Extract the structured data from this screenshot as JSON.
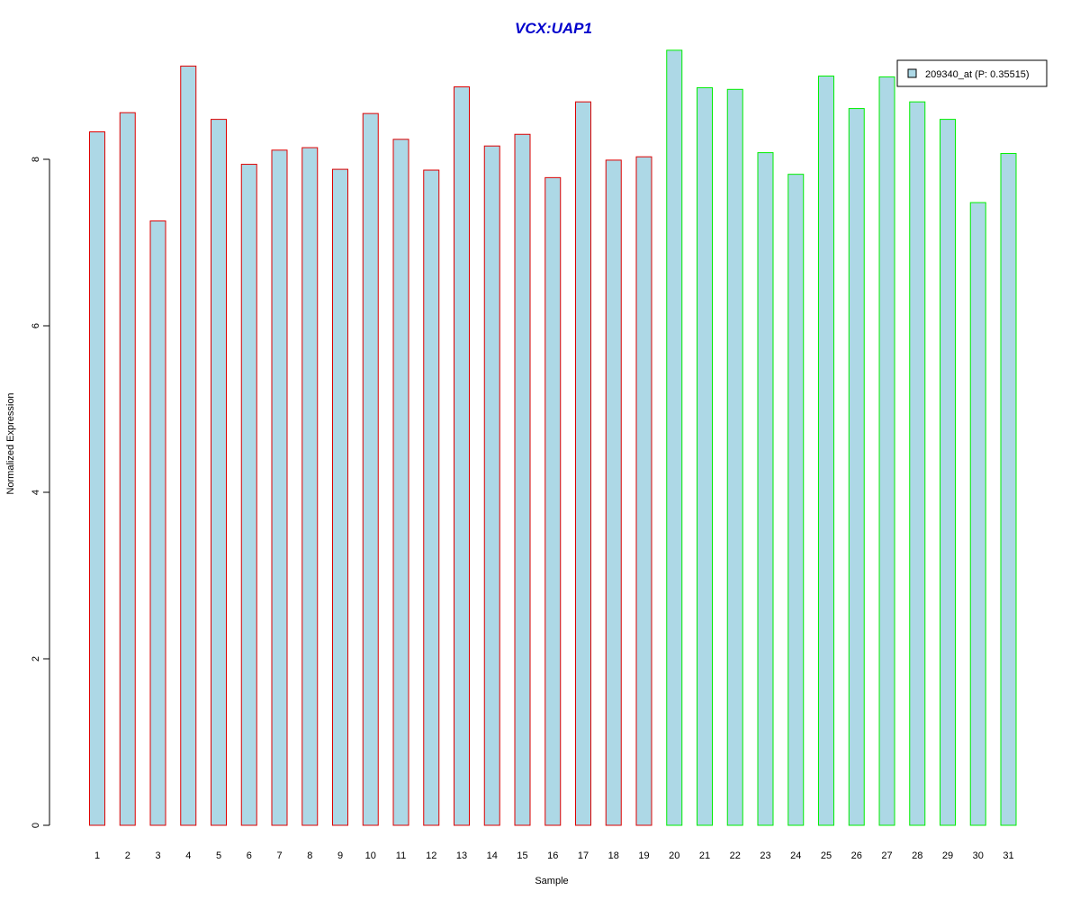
{
  "chart_data": {
    "type": "bar",
    "title": "VCX:UAP1",
    "xlabel": "Sample",
    "ylabel": "Normalized Expression",
    "ylim": [
      0,
      9.3
    ],
    "yticks": [
      "0",
      "2",
      "4",
      "6",
      "8"
    ],
    "grid": false,
    "legend_position": "top-right",
    "categories": [
      "1",
      "2",
      "3",
      "4",
      "5",
      "6",
      "7",
      "8",
      "9",
      "10",
      "11",
      "12",
      "13",
      "14",
      "15",
      "16",
      "17",
      "18",
      "19",
      "20",
      "21",
      "22",
      "23",
      "24",
      "25",
      "26",
      "27",
      "28",
      "29",
      "30",
      "31"
    ],
    "series": [
      {
        "name": "209340_at (P: 0.35515)",
        "values": [
          8.33,
          8.56,
          7.26,
          9.12,
          8.48,
          7.94,
          8.11,
          8.14,
          7.88,
          8.55,
          8.24,
          7.87,
          8.87,
          8.16,
          8.3,
          7.78,
          8.69,
          7.99,
          8.03,
          9.31,
          8.86,
          8.84,
          8.08,
          7.82,
          9.0,
          8.61,
          8.99,
          8.69,
          8.48,
          7.48,
          8.07
        ]
      }
    ],
    "group_sizes": [
      19,
      12
    ],
    "colors": {
      "title": "#0000cc",
      "bar_fill": "#add8e6",
      "group1_border": "#dd0000",
      "group2_border": "#00ee00",
      "axis": "#000000"
    }
  }
}
